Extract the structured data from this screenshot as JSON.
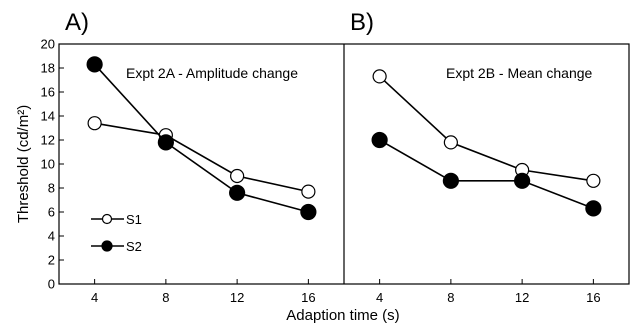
{
  "chart_data": {
    "type": "line",
    "xlabel": "Adaption time (s)",
    "ylabel": "Threshold (cd/m²)",
    "xlim": [
      2,
      18
    ],
    "ylim": [
      0,
      20
    ],
    "x_ticks": [
      4,
      8,
      12,
      16
    ],
    "y_ticks": [
      0,
      2,
      4,
      6,
      8,
      10,
      12,
      14,
      16,
      18,
      20
    ],
    "grid": false,
    "legend": {
      "placement": "bottom-left of panel A",
      "entries": [
        {
          "name": "S1",
          "marker": "open-circle"
        },
        {
          "name": "S2",
          "marker": "filled-circle"
        }
      ]
    },
    "panels": [
      {
        "id": "A",
        "letter": "A)",
        "annotation": "Expt 2A - Amplitude change",
        "series": [
          {
            "name": "S1",
            "marker": "open-circle",
            "x": [
              4,
              8,
              12,
              16
            ],
            "values": [
              13.4,
              12.4,
              9.0,
              7.7
            ]
          },
          {
            "name": "S2",
            "marker": "filled-circle",
            "x": [
              4,
              8,
              12,
              16
            ],
            "values": [
              18.3,
              11.8,
              7.6,
              6.0
            ]
          }
        ]
      },
      {
        "id": "B",
        "letter": "B)",
        "annotation": "Expt 2B - Mean change",
        "series": [
          {
            "name": "S1",
            "marker": "open-circle",
            "x": [
              4,
              8,
              12,
              16
            ],
            "values": [
              17.3,
              11.8,
              9.5,
              8.6
            ]
          },
          {
            "name": "S2",
            "marker": "filled-circle",
            "x": [
              4,
              8,
              12,
              16
            ],
            "values": [
              12.0,
              8.6,
              8.6,
              6.3
            ]
          }
        ]
      }
    ]
  }
}
